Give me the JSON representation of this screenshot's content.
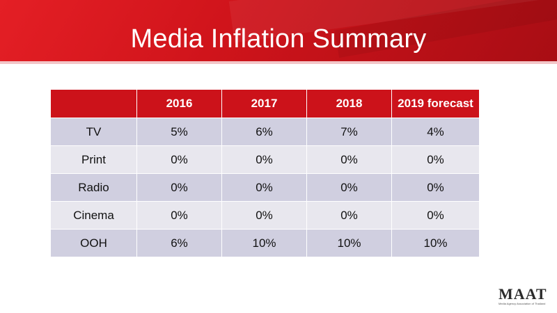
{
  "slide": {
    "title": "Media Inflation Summary"
  },
  "table": {
    "headers": [
      "",
      "2016",
      "2017",
      "2018",
      "2019 forecast"
    ],
    "rows": [
      [
        "TV",
        "5%",
        "6%",
        "7%",
        "4%"
      ],
      [
        "Print",
        "0%",
        "0%",
        "0%",
        "0%"
      ],
      [
        "Radio",
        "0%",
        "0%",
        "0%",
        "0%"
      ],
      [
        "Cinema",
        "0%",
        "0%",
        "0%",
        "0%"
      ],
      [
        "OOH",
        "6%",
        "10%",
        "10%",
        "10%"
      ]
    ]
  },
  "logo": {
    "mark": "MAAT",
    "tagline": "Media Agency Association of Thailand"
  },
  "colors": {
    "brand_red": "#cc121a",
    "row_odd": "#d0cfe0",
    "row_even": "#e8e7ee"
  }
}
